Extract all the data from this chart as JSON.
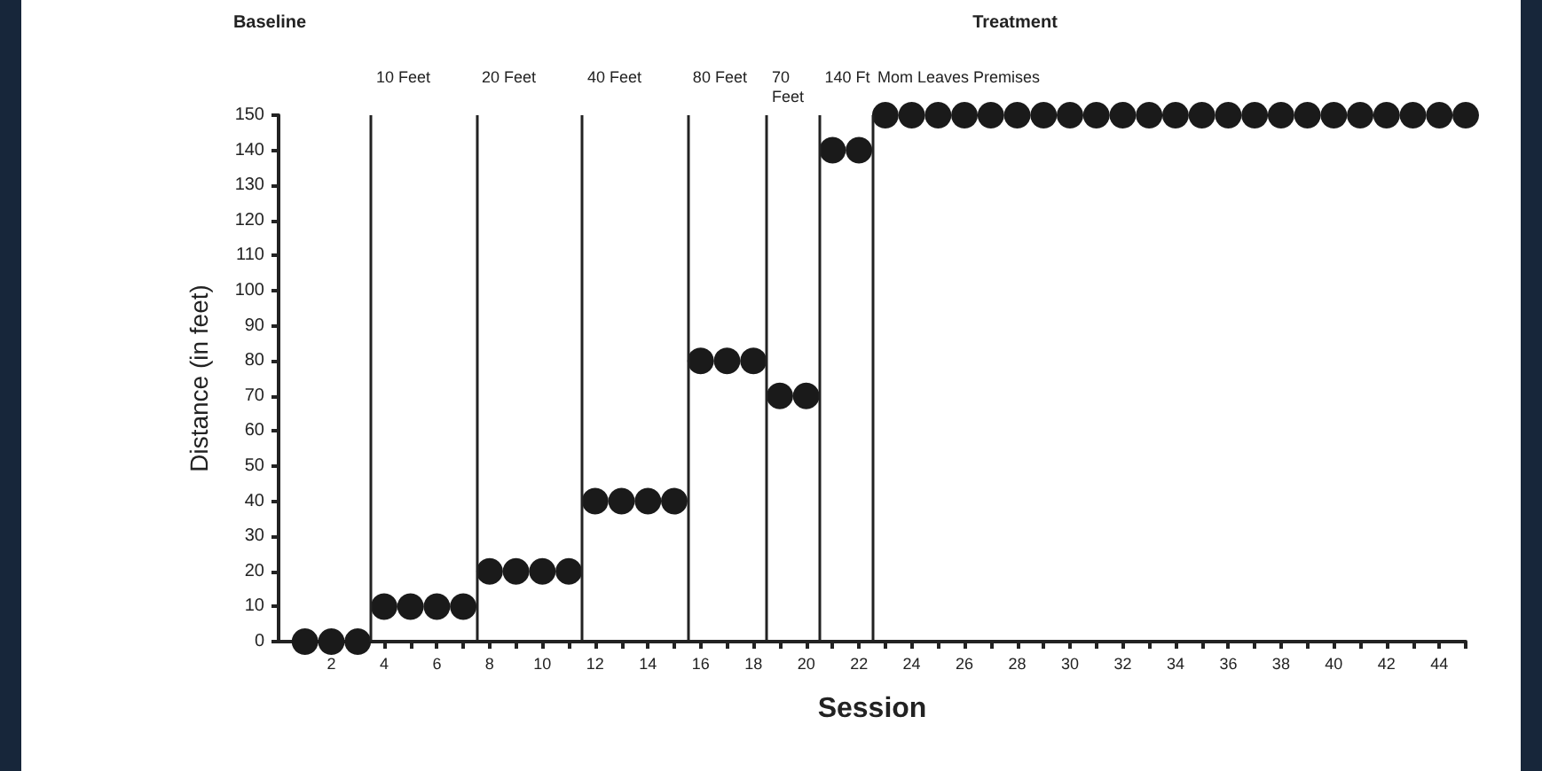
{
  "chart_data": {
    "type": "scatter",
    "xlabel": "Session",
    "ylabel": "Distance (in feet)",
    "annotations": [
      "Baseline",
      "Treatment"
    ],
    "x": [
      1,
      2,
      3,
      4,
      5,
      6,
      7,
      8,
      9,
      10,
      11,
      12,
      13,
      14,
      15,
      16,
      17,
      18,
      19,
      20,
      21,
      22,
      23,
      24,
      25,
      26,
      27,
      28,
      29,
      30,
      31,
      32,
      33,
      34,
      35,
      36,
      37,
      38,
      39,
      40,
      41,
      42,
      43,
      44,
      45
    ],
    "series": [
      {
        "color": "#1a1a1a",
        "values": [
          0,
          0,
          0,
          10,
          10,
          10,
          10,
          20,
          20,
          20,
          20,
          40,
          40,
          40,
          40,
          80,
          80,
          80,
          70,
          70,
          140,
          140,
          150,
          150,
          150,
          150,
          150,
          150,
          150,
          150,
          150,
          150,
          150,
          150,
          150,
          150,
          150,
          150,
          150,
          150,
          150,
          150,
          150,
          150,
          150
        ]
      }
    ],
    "xlim": [
      0,
      45
    ],
    "xticks": [
      {
        "value": 1,
        "label": null
      },
      2,
      {
        "value": 3,
        "label": null
      },
      4,
      {
        "value": 5,
        "label": null
      },
      6,
      {
        "value": 7,
        "label": null
      },
      8,
      {
        "value": 9,
        "label": null
      },
      10,
      {
        "value": 11,
        "label": null
      },
      12,
      {
        "value": 13,
        "label": null
      },
      14,
      {
        "value": 15,
        "label": null
      },
      16,
      {
        "value": 17,
        "label": null
      },
      18,
      {
        "value": 19,
        "label": null
      },
      20,
      {
        "value": 21,
        "label": null
      },
      22,
      {
        "value": 23,
        "label": null
      },
      24,
      {
        "value": 25,
        "label": null
      },
      26,
      {
        "value": 27,
        "label": null
      },
      28,
      {
        "value": 29,
        "label": null
      },
      30,
      {
        "value": 31,
        "label": null
      },
      32,
      {
        "value": 33,
        "label": null
      },
      34,
      {
        "value": 35,
        "label": null
      },
      36,
      {
        "value": 37,
        "label": null
      },
      38,
      {
        "value": 39,
        "label": null
      },
      40,
      {
        "value": 41,
        "label": null
      },
      42,
      {
        "value": 43,
        "label": null
      },
      44,
      {
        "value": 45,
        "label": null
      }
    ],
    "ylim": [
      0,
      150
    ],
    "yticks": [
      0,
      10,
      20,
      30,
      40,
      50,
      60,
      70,
      80,
      90,
      100,
      110,
      120,
      130,
      140,
      150
    ],
    "ref_lines": [
      {
        "axis": "x",
        "value": 3.5,
        "label": "10 Feet"
      },
      {
        "axis": "x",
        "value": 7.5,
        "label": "20 Feet"
      },
      {
        "axis": "x",
        "value": 11.5,
        "label": "40 Feet"
      },
      {
        "axis": "x",
        "value": 15.5,
        "label": "80 Feet"
      },
      {
        "axis": "x",
        "value": 18.5,
        "label": "70 Feet"
      },
      {
        "axis": "x",
        "value": 20.5,
        "label": "140 Ft"
      },
      {
        "axis": "x",
        "value": 22.5,
        "label": "Mom Leaves Premises"
      }
    ],
    "grid": false,
    "marker": "circle"
  }
}
